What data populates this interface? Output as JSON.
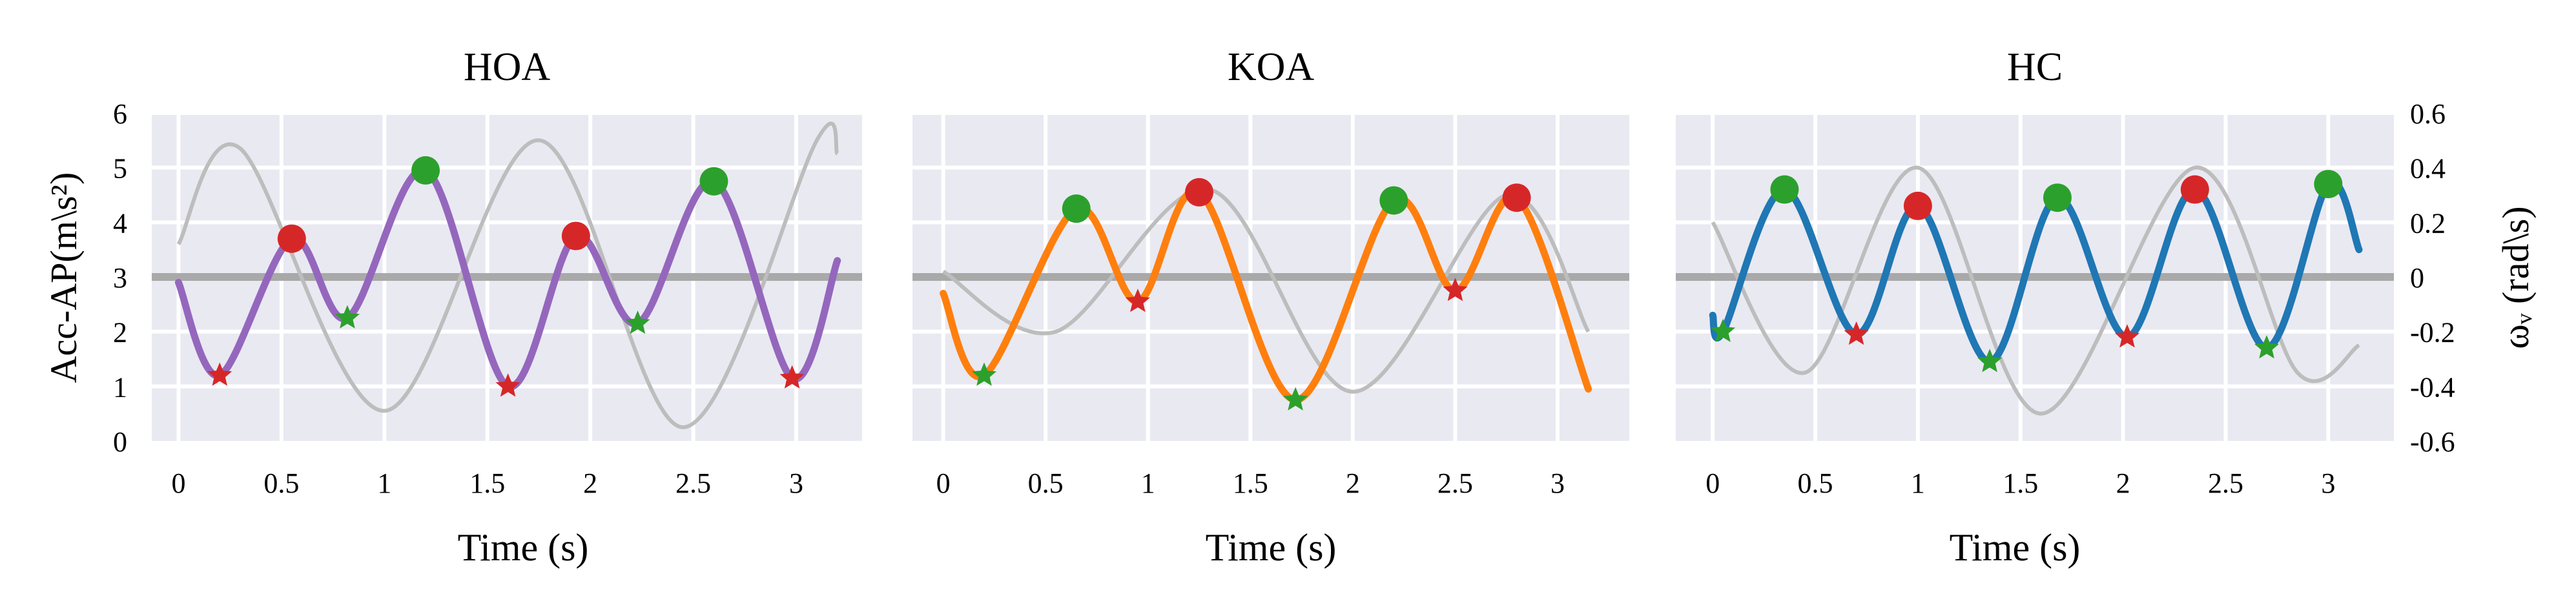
{
  "colors": {
    "panel_bg": "#e9e9f2",
    "grid": "#ffffff",
    "ref_line": "#a9a9a9",
    "gray_curve": "#bdbdbd",
    "peak": "#d62728",
    "valley_star_red": "#d62728",
    "valley_star_green": "#2ca02c",
    "hoa_series": "#9467bd",
    "koa_series": "#ff7f0e",
    "hc_series": "#1f77b4"
  },
  "chart_data": [
    {
      "type": "line",
      "title": "HOA",
      "xlabel": "Time (s)",
      "ylabel": "Acc-AP(m\\s²)",
      "y2label": "ωᵥ (rad\\s)",
      "xlim": [
        -0.13,
        3.32
      ],
      "ylim": [
        0,
        6
      ],
      "y2lim": [
        -0.6,
        0.6
      ],
      "xticks": [
        "0",
        "0.5",
        "1",
        "1.5",
        "2",
        "2.5",
        "3"
      ],
      "yticks": [
        "0",
        "1",
        "2",
        "3",
        "4",
        "5",
        "6"
      ],
      "y2ticks": [
        "-0.6",
        "-0.4",
        "-0.2",
        "0",
        "0.2",
        "0.4",
        "0.6"
      ],
      "reference_line_y": 3,
      "acc_series": {
        "color_key": "hoa_series",
        "points": [
          [
            0,
            2.9
          ],
          [
            0.2,
            1.2
          ],
          [
            0.55,
            3.7
          ],
          [
            0.82,
            2.25
          ],
          [
            1.2,
            4.95
          ],
          [
            1.6,
            1.0
          ],
          [
            1.93,
            3.75
          ],
          [
            2.23,
            2.15
          ],
          [
            2.6,
            4.75
          ],
          [
            2.98,
            1.15
          ],
          [
            3.2,
            3.3
          ]
        ]
      },
      "omega_series": {
        "points": [
          [
            0,
            0.12
          ],
          [
            0.3,
            0.47
          ],
          [
            1.0,
            -0.49
          ],
          [
            1.75,
            0.5
          ],
          [
            2.45,
            -0.55
          ],
          [
            3.1,
            0.5
          ],
          [
            3.2,
            0.45
          ]
        ]
      },
      "peaks": [
        [
          0.55,
          3.7
        ],
        [
          1.2,
          4.95
        ],
        [
          1.93,
          3.75
        ],
        [
          2.6,
          4.75
        ]
      ],
      "peak_colors": [
        "peak",
        "valley_star_green",
        "peak",
        "valley_star_green"
      ],
      "valleys": [
        [
          0.2,
          1.2
        ],
        [
          0.82,
          2.25
        ],
        [
          1.6,
          1.0
        ],
        [
          2.23,
          2.15
        ],
        [
          2.98,
          1.15
        ]
      ],
      "valley_colors": [
        "valley_star_red",
        "valley_star_green",
        "valley_star_red",
        "valley_star_green",
        "valley_star_red"
      ]
    },
    {
      "type": "line",
      "title": "KOA",
      "xlabel": "Time (s)",
      "xlim": [
        -0.15,
        3.35
      ],
      "ylim": [
        0,
        6
      ],
      "xticks": [
        "0",
        "0.5",
        "1",
        "1.5",
        "2",
        "2.5",
        "3"
      ],
      "reference_line_y": 3,
      "acc_series": {
        "color_key": "koa_series",
        "points": [
          [
            0,
            2.7
          ],
          [
            0.2,
            1.2
          ],
          [
            0.65,
            4.25
          ],
          [
            0.95,
            2.55
          ],
          [
            1.25,
            4.55
          ],
          [
            1.72,
            0.75
          ],
          [
            2.2,
            4.4
          ],
          [
            2.5,
            2.75
          ],
          [
            2.8,
            4.45
          ],
          [
            3.15,
            0.95
          ]
        ]
      },
      "omega_series": {
        "points": [
          [
            0,
            0.02
          ],
          [
            0.55,
            -0.2
          ],
          [
            1.3,
            0.32
          ],
          [
            2.0,
            -0.42
          ],
          [
            2.75,
            0.3
          ],
          [
            3.15,
            -0.2
          ]
        ]
      },
      "peaks": [
        [
          0.65,
          4.25
        ],
        [
          1.25,
          4.55
        ],
        [
          2.2,
          4.4
        ],
        [
          2.8,
          4.45
        ]
      ],
      "peak_colors": [
        "valley_star_green",
        "peak",
        "valley_star_green",
        "peak"
      ],
      "valleys": [
        [
          0.2,
          1.2
        ],
        [
          0.95,
          2.55
        ],
        [
          1.72,
          0.75
        ],
        [
          2.5,
          2.75
        ]
      ],
      "valley_colors": [
        "valley_star_green",
        "valley_star_red",
        "valley_star_green",
        "valley_star_red"
      ]
    },
    {
      "type": "line",
      "title": "HC",
      "xlabel": "Time (s)",
      "xlim": [
        -0.18,
        3.32
      ],
      "ylim": [
        0,
        6
      ],
      "xticks": [
        "0",
        "0.5",
        "1",
        "1.5",
        "2",
        "2.5",
        "3"
      ],
      "reference_line_y": 3,
      "acc_series": {
        "color_key": "hc_series",
        "points": [
          [
            0,
            2.3
          ],
          [
            0.05,
            2.0
          ],
          [
            0.35,
            4.6
          ],
          [
            0.7,
            1.95
          ],
          [
            1.0,
            4.3
          ],
          [
            1.35,
            1.45
          ],
          [
            1.68,
            4.45
          ],
          [
            2.02,
            1.9
          ],
          [
            2.35,
            4.6
          ],
          [
            2.7,
            1.7
          ],
          [
            3.0,
            4.7
          ],
          [
            3.15,
            3.5
          ]
        ]
      },
      "omega_series": {
        "points": [
          [
            0,
            0.2
          ],
          [
            0.45,
            -0.35
          ],
          [
            1.0,
            0.4
          ],
          [
            1.6,
            -0.5
          ],
          [
            2.35,
            0.4
          ],
          [
            2.85,
            -0.35
          ],
          [
            3.15,
            -0.25
          ]
        ]
      },
      "peaks": [
        [
          0.35,
          4.6
        ],
        [
          1.0,
          4.3
        ],
        [
          1.68,
          4.45
        ],
        [
          2.35,
          4.6
        ],
        [
          3.0,
          4.7
        ]
      ],
      "peak_colors": [
        "valley_star_green",
        "peak",
        "valley_star_green",
        "peak",
        "valley_star_green"
      ],
      "valleys": [
        [
          0.05,
          2.0
        ],
        [
          0.7,
          1.95
        ],
        [
          1.35,
          1.45
        ],
        [
          2.02,
          1.9
        ],
        [
          2.7,
          1.7
        ]
      ],
      "valley_colors": [
        "valley_star_green",
        "valley_star_red",
        "valley_star_green",
        "valley_star_red",
        "valley_star_green"
      ]
    }
  ]
}
